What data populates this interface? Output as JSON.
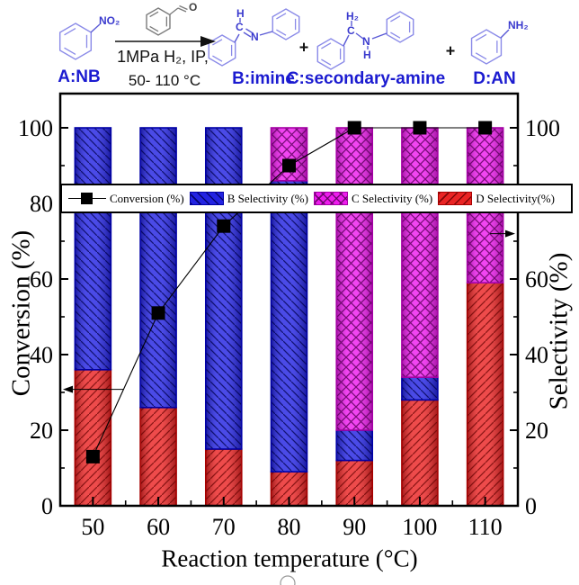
{
  "scheme": {
    "reactant_label": "A:NB",
    "conditions_line1": "1MPa H₂, IP,",
    "conditions_line2": "50- 110 °C",
    "product_b_label": "B:imine",
    "product_c_label": "C:secondary-amine",
    "product_d_label": "D:AN",
    "plus": "+",
    "atoms": {
      "no2": "NO₂",
      "o": "O",
      "h_imine": "H",
      "c_imine": "C",
      "n_imine": "N",
      "h2_amine": "H₂",
      "c_amine": "C",
      "n_amine": "N",
      "h_amine": "H",
      "nh2": "NH₂"
    }
  },
  "chart_data": {
    "type": "bar",
    "stacked": true,
    "title": "",
    "xlabel": "Reaction temperature (°C)",
    "ylabel_left": "Conversion (%)",
    "ylabel_right": "Selectivity (%)",
    "ylim": [
      0,
      100
    ],
    "yticks": [
      0,
      20,
      40,
      60,
      80,
      100
    ],
    "grid": false,
    "legend_position": "top",
    "categories": [
      50,
      60,
      70,
      80,
      90,
      100,
      110
    ],
    "stack_order": [
      "D",
      "B",
      "C"
    ],
    "series": [
      {
        "id": "conv",
        "name": "Conversion (%)",
        "type": "line",
        "marker": "square",
        "color": "#000000",
        "values": [
          13,
          51,
          74,
          90,
          100,
          100,
          100
        ]
      },
      {
        "id": "B",
        "name": "B Selectivity  (%)",
        "type": "bar",
        "hatch": "\\",
        "color": "#2323e2",
        "border": "#0000a6",
        "hatch_color": "#00004a",
        "values": [
          64,
          74,
          85,
          77,
          8,
          6,
          0
        ]
      },
      {
        "id": "C",
        "name": "C Selectivity (%)",
        "type": "bar",
        "hatch": "x",
        "color": "#ee1cee",
        "border": "#a400a4",
        "hatch_color": "#5a005a",
        "values": [
          0,
          0,
          0,
          14,
          80,
          66,
          41
        ]
      },
      {
        "id": "D",
        "name": "D Selectivity(%)",
        "type": "bar",
        "hatch": "/",
        "color": "#ea2424",
        "border": "#a60000",
        "hatch_color": "#640000",
        "values": [
          36,
          26,
          15,
          9,
          12,
          28,
          59
        ]
      }
    ],
    "annotations": [
      {
        "type": "arrow-left",
        "meaning": "conversion-uses-left-axis",
        "y_value": 30.8
      },
      {
        "type": "arrow-right",
        "meaning": "bars-use-right-axis",
        "y_value": 72
      }
    ]
  }
}
